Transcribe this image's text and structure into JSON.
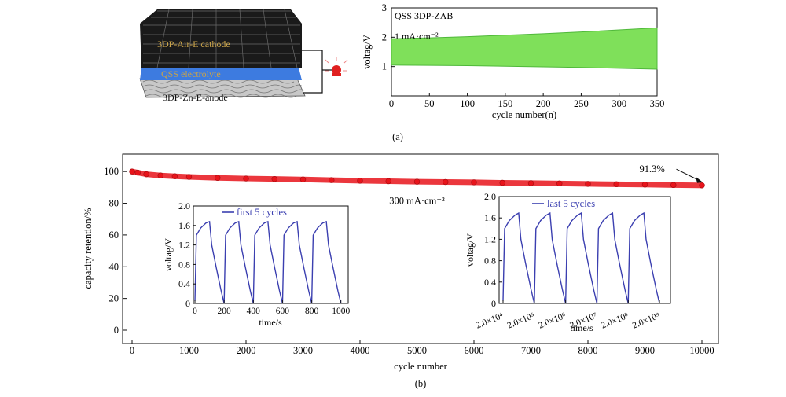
{
  "colors": {
    "panel_a_fill": "#7fe05a",
    "panel_a_edge": "#4fb83a",
    "retention_series": "#e8141b",
    "inset_series": "#3b3fb0",
    "electrolyte_layer": "#3d7be0",
    "cathode_layer": "#1a1a1a",
    "anode_layer": "#d8d8d8",
    "led": "#e02020"
  },
  "schematic": {
    "cathode_label": "3DP-Air-E cathode",
    "electrolyte_label": "QSS electrolyte",
    "anode_label": "3DP-Zn-E-anode",
    "icons": [
      "led-bulb-icon",
      "circuit-wire-icon"
    ]
  },
  "panel_labels": {
    "a": "(a)",
    "b": "(b)"
  },
  "chart_data": [
    {
      "id": "voltage_profile",
      "type": "area",
      "title": "QSS 3DP-ZAB",
      "subtitle": "1 mA·cm⁻²",
      "xlabel": "cycle number(n)",
      "ylabel": "voltag/V",
      "xlim": [
        0,
        350
      ],
      "ylim": [
        0,
        3
      ],
      "xticks": [
        0,
        50,
        100,
        150,
        200,
        250,
        300,
        350
      ],
      "yticks": [
        1,
        2,
        3
      ],
      "x": [
        0,
        50,
        100,
        150,
        200,
        250,
        300,
        350
      ],
      "upper": [
        1.95,
        1.98,
        2.02,
        2.07,
        2.12,
        2.18,
        2.25,
        2.32
      ],
      "lower": [
        1.05,
        1.04,
        1.03,
        1.01,
        0.99,
        0.97,
        0.94,
        0.91
      ]
    },
    {
      "id": "capacity_retention",
      "type": "scatter",
      "xlabel": "cycle number",
      "ylabel": "capacity retention/%",
      "xlim": [
        0,
        10000
      ],
      "ylim": [
        0,
        110
      ],
      "xticks": [
        0,
        1000,
        2000,
        3000,
        4000,
        5000,
        6000,
        7000,
        8000,
        9000,
        10000
      ],
      "yticks": [
        0,
        20,
        40,
        60,
        80,
        100
      ],
      "annotations": [
        {
          "text": "300 mA·cm⁻²",
          "x": 5000,
          "y": 80
        },
        {
          "text": "91.3%",
          "x": 9000,
          "y": 100,
          "arrow_to": [
            10000,
            91.3
          ]
        }
      ],
      "x": [
        0,
        100,
        250,
        500,
        750,
        1000,
        1500,
        2000,
        2500,
        3000,
        3500,
        4000,
        4500,
        5000,
        5500,
        6000,
        6500,
        7000,
        7500,
        8000,
        8500,
        9000,
        9500,
        10000
      ],
      "y": [
        100,
        99.3,
        98.3,
        97.5,
        97.0,
        96.6,
        96.0,
        95.6,
        95.3,
        95.0,
        94.6,
        94.2,
        93.9,
        93.6,
        93.4,
        93.2,
        92.9,
        92.7,
        92.5,
        92.2,
        92.0,
        91.8,
        91.5,
        91.3
      ]
    },
    {
      "id": "inset_first_cycles",
      "type": "line",
      "legend": "first 5 cycles",
      "xlabel": "time/s",
      "ylabel": "voltag/V",
      "xlim": [
        0,
        1050
      ],
      "ylim": [
        0,
        2.0
      ],
      "xticks": [
        0,
        200,
        400,
        600,
        800,
        1000
      ],
      "yticks": [
        0,
        0.4,
        0.8,
        1.2,
        1.6,
        2.0
      ],
      "ytick_labels": [
        "0",
        "0.4",
        "0.8",
        "1.2",
        "1.6",
        "2.0"
      ],
      "x": [
        0,
        10,
        40,
        75,
        100,
        115,
        145,
        180,
        200,
        210,
        240,
        275,
        300,
        315,
        345,
        380,
        400,
        410,
        440,
        475,
        500,
        515,
        545,
        580,
        600,
        610,
        640,
        675,
        700,
        715,
        745,
        780,
        800,
        810,
        840,
        875,
        900,
        915,
        945,
        980,
        1000
      ],
      "y": [
        0.05,
        1.4,
        1.55,
        1.65,
        1.68,
        1.2,
        0.75,
        0.25,
        0.0,
        1.4,
        1.55,
        1.65,
        1.68,
        1.2,
        0.75,
        0.25,
        0.0,
        1.4,
        1.55,
        1.65,
        1.68,
        1.2,
        0.75,
        0.25,
        0.0,
        1.4,
        1.55,
        1.65,
        1.68,
        1.2,
        0.75,
        0.25,
        0.0,
        1.4,
        1.55,
        1.65,
        1.68,
        1.2,
        0.75,
        0.25,
        0.0
      ]
    },
    {
      "id": "inset_last_cycles",
      "type": "line",
      "legend": "last 5 cycles",
      "xlabel": "time/s",
      "ylabel": "voltag/V",
      "xlim": [
        0,
        5.3
      ],
      "ylim": [
        0,
        2.0
      ],
      "xticks": [
        0,
        1,
        2,
        3,
        4,
        5
      ],
      "xtick_labels": [
        "2.0×10⁴",
        "2.0×10⁵",
        "2.0×10⁶",
        "2.0×10⁷",
        "2.0×10⁸",
        "2.0×10⁹"
      ],
      "yticks": [
        0,
        0.4,
        0.8,
        1.2,
        1.6,
        2.0
      ],
      "ytick_labels": [
        "0",
        "0.4",
        "0.8",
        "1.2",
        "1.6",
        "2.0"
      ],
      "x": [
        0,
        0.05,
        0.2,
        0.38,
        0.5,
        0.57,
        0.72,
        0.9,
        1.0,
        1.05,
        1.2,
        1.38,
        1.5,
        1.57,
        1.72,
        1.9,
        2.0,
        2.05,
        2.2,
        2.38,
        2.5,
        2.57,
        2.72,
        2.9,
        3.0,
        3.05,
        3.2,
        3.38,
        3.5,
        3.57,
        3.72,
        3.9,
        4.0,
        4.05,
        4.2,
        4.38,
        4.5,
        4.57,
        4.72,
        4.9,
        5.0
      ],
      "y": [
        0.05,
        1.4,
        1.55,
        1.65,
        1.69,
        1.2,
        0.75,
        0.25,
        0.0,
        1.4,
        1.55,
        1.65,
        1.69,
        1.2,
        0.75,
        0.25,
        0.0,
        1.4,
        1.55,
        1.65,
        1.69,
        1.2,
        0.75,
        0.25,
        0.0,
        1.4,
        1.55,
        1.65,
        1.69,
        1.2,
        0.75,
        0.25,
        0.0,
        1.4,
        1.55,
        1.65,
        1.69,
        1.2,
        0.75,
        0.25,
        0.0
      ]
    }
  ]
}
